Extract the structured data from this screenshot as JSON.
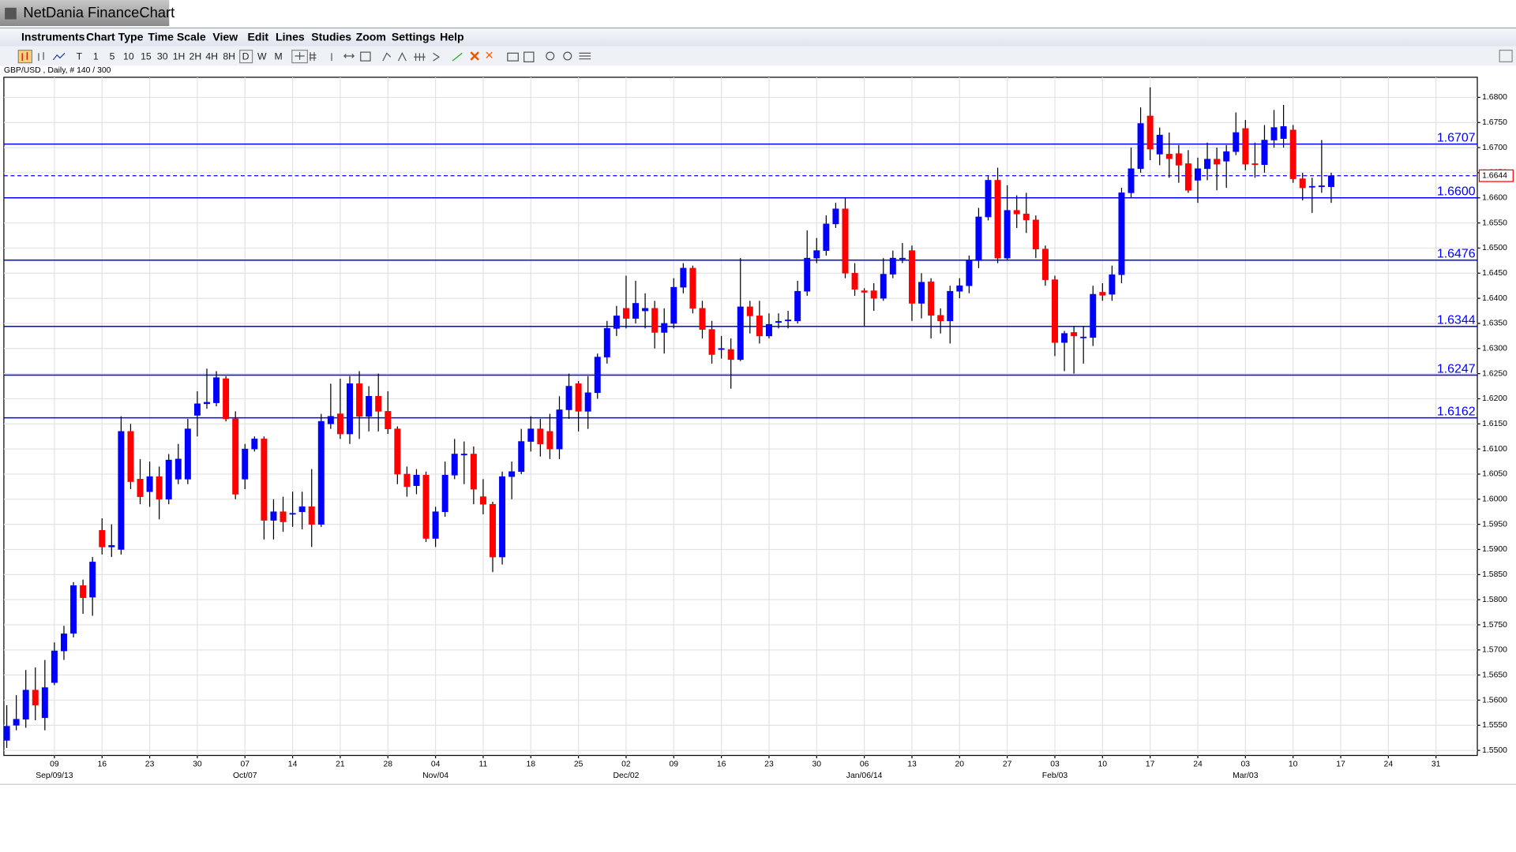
{
  "window_title": "NetDania FinanceChart",
  "menu": [
    "Instruments",
    "Chart Type",
    "Time Scale",
    "View",
    "Edit",
    "Lines",
    "Studies",
    "Zoom",
    "Settings",
    "Help"
  ],
  "toolbar": [
    "T",
    "1",
    "5",
    "10",
    "15",
    "30",
    "1H",
    "2H",
    "4H",
    "8H",
    "D",
    "W",
    "M"
  ],
  "chart_data": {
    "type": "candlestick",
    "title": "GBP/USD , Daily, # 140 / 300",
    "categories": [
      null,
      null,
      null,
      null,
      null,
      "09",
      null,
      null,
      null,
      null,
      "16",
      null,
      null,
      null,
      null,
      "23",
      null,
      null,
      null,
      null,
      "30",
      null,
      null,
      null,
      null,
      "07",
      null,
      null,
      null,
      null,
      "14",
      null,
      null,
      null,
      null,
      "21",
      null,
      null,
      null,
      null,
      "28",
      null,
      null,
      null,
      null,
      "04",
      null,
      null,
      null,
      null,
      "11",
      null,
      null,
      null,
      null,
      "18",
      null,
      null,
      null,
      null,
      "25",
      null,
      null,
      null,
      null,
      "02",
      null,
      null,
      null,
      null,
      "09",
      null,
      null,
      null,
      null,
      "16",
      null,
      null,
      null,
      null,
      "23",
      null,
      null,
      null,
      null,
      "30",
      null,
      null,
      null,
      null,
      "06",
      null,
      null,
      null,
      null,
      "13",
      null,
      null,
      null,
      null,
      "20",
      null,
      null,
      null,
      null,
      "27",
      null,
      null,
      null,
      null,
      "03",
      null,
      null,
      null,
      null,
      "10",
      null,
      null,
      null,
      null,
      "17",
      null,
      null,
      null,
      null,
      "24",
      null,
      null,
      null,
      null,
      "03",
      null,
      null,
      null,
      null,
      "10",
      null,
      null,
      null,
      null,
      "17",
      null,
      null,
      null,
      null,
      "24",
      null,
      null,
      null,
      null,
      "31",
      null,
      null,
      null,
      null
    ],
    "month_labels": [
      null,
      null,
      null,
      null,
      null,
      "Sep/09/13",
      null,
      null,
      null,
      null,
      null,
      null,
      null,
      null,
      null,
      null,
      null,
      null,
      null,
      null,
      null,
      null,
      null,
      null,
      null,
      "Oct/07",
      null,
      null,
      null,
      null,
      null,
      null,
      null,
      null,
      null,
      null,
      null,
      null,
      null,
      null,
      null,
      null,
      null,
      null,
      null,
      "Nov/04",
      null,
      null,
      null,
      null,
      null,
      null,
      null,
      null,
      null,
      null,
      null,
      null,
      null,
      null,
      null,
      null,
      null,
      null,
      null,
      "Dec/02",
      null,
      null,
      null,
      null,
      null,
      null,
      null,
      null,
      null,
      null,
      null,
      null,
      null,
      null,
      null,
      null,
      null,
      null,
      null,
      null,
      null,
      null,
      null,
      null,
      "Jan/06/14",
      null,
      null,
      null,
      null,
      null,
      null,
      null,
      null,
      null,
      null,
      null,
      null,
      null,
      null,
      null,
      null,
      null,
      null,
      null,
      "Feb/03",
      null,
      null,
      null,
      null,
      null,
      null,
      null,
      null,
      null,
      null,
      null,
      null,
      null,
      null,
      null,
      null,
      null,
      null,
      null,
      "Mar/03",
      null,
      null,
      null,
      null,
      null,
      null,
      null,
      null,
      null,
      null,
      null,
      null,
      null,
      null,
      null,
      null,
      null,
      null,
      null,
      null,
      null,
      null,
      null,
      null
    ],
    "open": [
      1.552,
      1.555,
      1.5562,
      1.562,
      1.5565,
      1.5635,
      1.5698,
      1.5733,
      1.5828,
      1.5805,
      1.5938,
      1.5905,
      1.59,
      1.6135,
      1.604,
      1.6015,
      1.6045,
      1.6,
      1.604,
      1.604,
      1.6167,
      1.619,
      1.6192,
      1.624,
      1.616,
      1.604,
      1.61,
      1.612,
      1.5958,
      1.5975,
      1.597,
      1.5975,
      1.5985,
      1.595,
      1.615,
      1.617,
      1.613,
      1.623,
      1.6165,
      1.6205,
      1.6175,
      1.614,
      1.605,
      1.6027,
      1.6048,
      1.5922,
      1.5975,
      1.6048,
      1.6088,
      1.609,
      1.6005,
      1.599,
      1.5885,
      1.6045,
      1.6055,
      1.6115,
      1.614,
      1.6135,
      1.61,
      1.6178,
      1.623,
      1.6175,
      1.6212,
      1.6283,
      1.634,
      1.638,
      1.636,
      1.6375,
      1.638,
      1.6332,
      1.635,
      1.6422,
      1.646,
      1.638,
      1.6338,
      1.6298,
      1.6298,
      1.6278,
      1.6383,
      1.6365,
      1.6325,
      1.6352,
      1.6355,
      1.6355,
      1.6414,
      1.648,
      1.6495,
      1.6548,
      1.6578,
      1.645,
      1.6415,
      1.6415,
      1.64,
      1.6448,
      1.6478,
      1.6495,
      1.639,
      1.6433,
      1.6366,
      1.6355,
      1.6414,
      1.6425,
      1.6475,
      1.6562,
      1.6635,
      1.648,
      1.6575,
      1.6568,
      1.6556,
      1.6498,
      1.6437,
      1.6312,
      1.6332,
      1.6322,
      1.6322,
      1.6412,
      1.6408,
      1.6447,
      1.661,
      1.6658,
      1.6763,
      1.6687,
      1.6687,
      1.6688,
      1.6668,
      1.6635,
      1.6658,
      1.6677,
      1.6673,
      1.6692,
      1.6738,
      1.6668,
      1.6666,
      1.6715,
      1.6718,
      1.6735,
      1.6638,
      1.6622,
      1.6622,
      1.6622,
      null,
      null,
      null,
      null,
      null,
      null,
      null,
      null,
      null,
      null,
      null,
      null,
      null,
      null,
      null
    ],
    "high": [
      1.559,
      1.561,
      1.566,
      1.5665,
      1.568,
      1.5715,
      1.5748,
      1.5835,
      1.584,
      1.5885,
      1.5962,
      1.595,
      1.6165,
      1.615,
      1.608,
      1.6075,
      1.6065,
      1.609,
      1.611,
      1.616,
      1.6215,
      1.626,
      1.6255,
      1.6245,
      1.6175,
      1.611,
      1.6125,
      1.6125,
      1.6,
      1.6005,
      1.6015,
      1.6015,
      1.606,
      1.617,
      1.623,
      1.624,
      1.6245,
      1.6255,
      1.6225,
      1.625,
      1.6215,
      1.6145,
      1.6065,
      1.606,
      1.6055,
      1.5985,
      1.6075,
      1.612,
      1.6115,
      1.6105,
      1.604,
      1.5995,
      1.6055,
      1.6075,
      1.614,
      1.6165,
      1.616,
      1.617,
      1.6205,
      1.625,
      1.6235,
      1.6245,
      1.629,
      1.6355,
      1.6385,
      1.6445,
      1.6435,
      1.641,
      1.6395,
      1.638,
      1.644,
      1.647,
      1.6465,
      1.6395,
      1.6355,
      1.6325,
      1.632,
      1.648,
      1.6395,
      1.6395,
      1.637,
      1.637,
      1.6375,
      1.6435,
      1.6535,
      1.652,
      1.6565,
      1.659,
      1.66,
      1.647,
      1.642,
      1.643,
      1.648,
      1.6495,
      1.651,
      1.6505,
      1.645,
      1.644,
      1.638,
      1.6425,
      1.644,
      1.6485,
      1.658,
      1.6645,
      1.666,
      1.6625,
      1.6605,
      1.661,
      1.6565,
      1.6505,
      1.6445,
      1.6335,
      1.6345,
      1.6345,
      1.6425,
      1.643,
      1.6465,
      1.662,
      1.67,
      1.678,
      1.682,
      1.674,
      1.673,
      1.6705,
      1.6695,
      1.668,
      1.671,
      1.67,
      1.6705,
      1.677,
      1.6755,
      1.671,
      1.6745,
      1.6775,
      1.6785,
      1.6745,
      1.665,
      1.664,
      1.6715,
      1.665,
      null,
      null,
      null,
      null,
      null,
      null,
      null,
      null,
      null,
      null,
      null,
      null,
      null,
      null,
      null
    ],
    "low": [
      1.5505,
      1.554,
      1.5545,
      1.556,
      1.554,
      1.563,
      1.568,
      1.5725,
      1.5772,
      1.5768,
      1.589,
      1.5885,
      1.589,
      1.602,
      1.599,
      1.5985,
      1.596,
      1.599,
      1.603,
      1.603,
      1.6125,
      1.618,
      1.6185,
      1.6155,
      1.6,
      1.602,
      1.6095,
      1.592,
      1.592,
      1.5935,
      1.5945,
      1.594,
      1.5905,
      1.5945,
      1.614,
      1.612,
      1.611,
      1.612,
      1.6135,
      1.6135,
      1.613,
      1.603,
      1.6005,
      1.601,
      1.5915,
      1.5905,
      1.5965,
      1.604,
      1.603,
      1.599,
      1.597,
      1.5855,
      1.587,
      1.6,
      1.605,
      1.6095,
      1.6085,
      1.608,
      1.608,
      1.616,
      1.6135,
      1.614,
      1.62,
      1.627,
      1.6325,
      1.634,
      1.635,
      1.634,
      1.63,
      1.629,
      1.634,
      1.641,
      1.637,
      1.632,
      1.627,
      1.628,
      1.622,
      1.6275,
      1.633,
      1.631,
      1.632,
      1.634,
      1.634,
      1.635,
      1.6405,
      1.647,
      1.6485,
      1.654,
      1.644,
      1.6405,
      1.6345,
      1.6375,
      1.6395,
      1.644,
      1.647,
      1.6355,
      1.636,
      1.632,
      1.633,
      1.631,
      1.64,
      1.641,
      1.646,
      1.6555,
      1.647,
      1.6475,
      1.654,
      1.653,
      1.648,
      1.6425,
      1.6285,
      1.6255,
      1.625,
      1.627,
      1.6305,
      1.6395,
      1.6395,
      1.643,
      1.66,
      1.665,
      1.6675,
      1.6665,
      1.664,
      1.663,
      1.661,
      1.659,
      1.6635,
      1.6615,
      1.662,
      1.6685,
      1.6655,
      1.664,
      1.665,
      1.67,
      1.67,
      1.663,
      1.6595,
      1.657,
      1.661,
      1.659,
      null,
      null,
      null,
      null,
      null,
      null,
      null,
      null,
      null,
      null,
      null,
      null,
      null,
      null,
      null
    ],
    "close": [
      1.5548,
      1.5562,
      1.562,
      1.559,
      1.5625,
      1.5698,
      1.5732,
      1.5828,
      1.5804,
      1.5875,
      1.5905,
      1.5908,
      1.6135,
      1.6035,
      1.6005,
      1.6045,
      1.6,
      1.6078,
      1.608,
      1.614,
      1.619,
      1.6193,
      1.6242,
      1.616,
      1.601,
      1.61,
      1.612,
      1.5958,
      1.5975,
      1.5955,
      1.5972,
      1.5985,
      1.595,
      1.6155,
      1.6165,
      1.613,
      1.623,
      1.6165,
      1.6205,
      1.6175,
      1.614,
      1.605,
      1.6025,
      1.6048,
      1.5922,
      1.5975,
      1.6048,
      1.609,
      1.609,
      1.602,
      1.599,
      1.5885,
      1.6045,
      1.6055,
      1.6115,
      1.614,
      1.611,
      1.61,
      1.6178,
      1.6225,
      1.6175,
      1.6212,
      1.6283,
      1.634,
      1.6365,
      1.636,
      1.639,
      1.638,
      1.6332,
      1.635,
      1.6422,
      1.646,
      1.638,
      1.6338,
      1.6288,
      1.63,
      1.6278,
      1.6383,
      1.6365,
      1.6325,
      1.6348,
      1.6354,
      1.6357,
      1.6414,
      1.648,
      1.6495,
      1.6548,
      1.6578,
      1.645,
      1.6418,
      1.6412,
      1.64,
      1.6448,
      1.648,
      1.648,
      1.639,
      1.6432,
      1.6366,
      1.6355,
      1.6414,
      1.6425,
      1.6475,
      1.6562,
      1.6635,
      1.648,
      1.6575,
      1.6568,
      1.6556,
      1.6498,
      1.6437,
      1.6312,
      1.633,
      1.6325,
      1.6323,
      1.6408,
      1.6406,
      1.6447,
      1.661,
      1.6658,
      1.6748,
      1.6697,
      1.6725,
      1.6678,
      1.6665,
      1.6615,
      1.6658,
      1.6677,
      1.6667,
      1.6692,
      1.673,
      1.6667,
      1.6666,
      1.6715,
      1.674,
      1.6742,
      1.6638,
      1.662,
      1.6623,
      1.6624,
      1.6644,
      null,
      null,
      null,
      null,
      null,
      null,
      null,
      null,
      null,
      null,
      null,
      null,
      null,
      null,
      null
    ],
    "up_color": "#0000ff",
    "down_color": "#ff0000",
    "wick_color": "#000000",
    "ylim": [
      1.549,
      1.684
    ],
    "yticks": [
      {
        "value": 1.55,
        "label": "1.5500"
      },
      {
        "value": 1.555,
        "label": "1.5550"
      },
      {
        "value": 1.56,
        "label": "1.5600"
      },
      {
        "value": 1.565,
        "label": "1.5650"
      },
      {
        "value": 1.57,
        "label": "1.5700"
      },
      {
        "value": 1.575,
        "label": "1.5750"
      },
      {
        "value": 1.58,
        "label": "1.5800"
      },
      {
        "value": 1.585,
        "label": "1.5850"
      },
      {
        "value": 1.59,
        "label": "1.5900"
      },
      {
        "value": 1.595,
        "label": "1.5950"
      },
      {
        "value": 1.6,
        "label": "1.6000"
      },
      {
        "value": 1.605,
        "label": "1.6050"
      },
      {
        "value": 1.61,
        "label": "1.6100"
      },
      {
        "value": 1.615,
        "label": "1.6150"
      },
      {
        "value": 1.62,
        "label": "1.6200"
      },
      {
        "value": 1.625,
        "label": "1.6250"
      },
      {
        "value": 1.63,
        "label": "1.6300"
      },
      {
        "value": 1.635,
        "label": "1.6350"
      },
      {
        "value": 1.64,
        "label": "1.6400"
      },
      {
        "value": 1.645,
        "label": "1.6450"
      },
      {
        "value": 1.65,
        "label": "1.6500"
      },
      {
        "value": 1.655,
        "label": "1.6550"
      },
      {
        "value": 1.66,
        "label": "1.6600"
      },
      {
        "value": 1.665,
        "label": "1.6650"
      },
      {
        "value": 1.67,
        "label": "1.6700"
      },
      {
        "value": 1.675,
        "label": "1.6750"
      },
      {
        "value": 1.68,
        "label": "1.6800"
      }
    ],
    "levels": [
      1.6707,
      {
        "value": 1.66,
        "label": "1.6600"
      },
      1.6476,
      1.6344,
      1.6247,
      1.6162
    ],
    "level_color": "#0000ff",
    "last_price": 1.6644,
    "grid": true
  }
}
